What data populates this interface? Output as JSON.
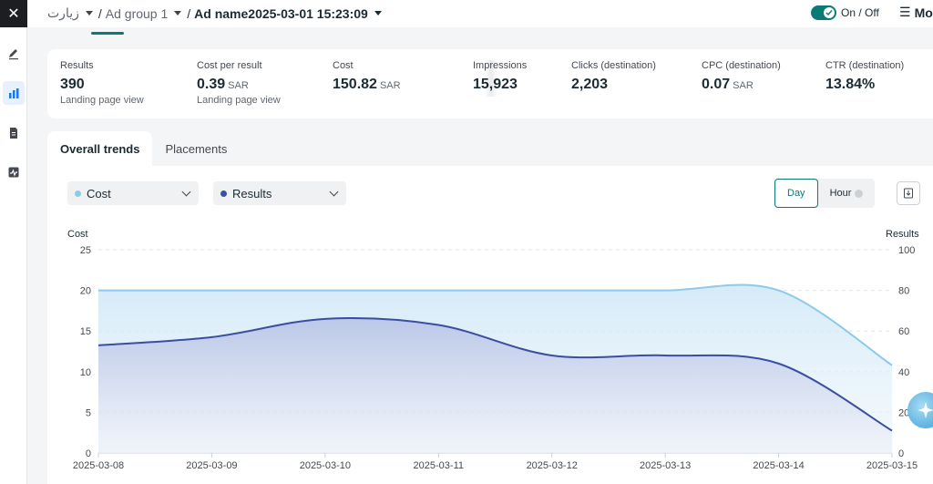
{
  "header": {
    "breadcrumb": {
      "campaign": "زيارت",
      "sep": "/",
      "ad_group": "Ad group 1",
      "ad_name": "Ad name2025-03-01 15:23:09"
    },
    "toggle_label": "On / Off",
    "more_label": "More"
  },
  "metrics": [
    {
      "label": "Results",
      "value": "390",
      "unit": "",
      "sub": "Landing page view"
    },
    {
      "label": "Cost per result",
      "value": "0.39",
      "unit": "SAR",
      "sub": "Landing page view"
    },
    {
      "label": "Cost",
      "value": "150.82",
      "unit": "SAR",
      "sub": ""
    },
    {
      "label": "Impressions",
      "value": "15,923",
      "unit": "",
      "sub": ""
    },
    {
      "label": "Clicks (destination)",
      "value": "2,203",
      "unit": "",
      "sub": ""
    },
    {
      "label": "CPC (destination)",
      "value": "0.07",
      "unit": "SAR",
      "sub": ""
    },
    {
      "label": "CTR (destination)",
      "value": "13.84%",
      "unit": "",
      "sub": ""
    }
  ],
  "tabs": [
    {
      "label": "Overall trends",
      "active": true
    },
    {
      "label": "Placements",
      "active": false
    }
  ],
  "controls": {
    "metric_left": "Cost",
    "metric_right": "Results",
    "granularity": [
      "Day",
      "Hour"
    ],
    "selected_granularity": "Day"
  },
  "colors": {
    "cost": "#8ec9ec",
    "results": "#3b4ea0",
    "accent": "#0a7a76"
  },
  "chart_data": {
    "type": "area",
    "x": [
      "2025-03-08",
      "2025-03-09",
      "2025-03-10",
      "2025-03-11",
      "2025-03-12",
      "2025-03-13",
      "2025-03-14",
      "2025-03-15"
    ],
    "ylabel_left": "Cost",
    "ylabel_right": "Results",
    "ylim_left": [
      0,
      25
    ],
    "ylim_right": [
      0,
      100
    ],
    "yticks_left": [
      0,
      5,
      10,
      15,
      20,
      25
    ],
    "yticks_right": [
      0,
      20,
      40,
      60,
      80,
      100
    ],
    "grid": true,
    "series": [
      {
        "name": "Cost",
        "axis": "left",
        "values": [
          20,
          20,
          20,
          20,
          20,
          20,
          20,
          10.8
        ]
      },
      {
        "name": "Results",
        "axis": "right",
        "values": [
          53,
          57,
          66,
          63,
          48,
          48,
          44,
          11
        ]
      }
    ]
  }
}
